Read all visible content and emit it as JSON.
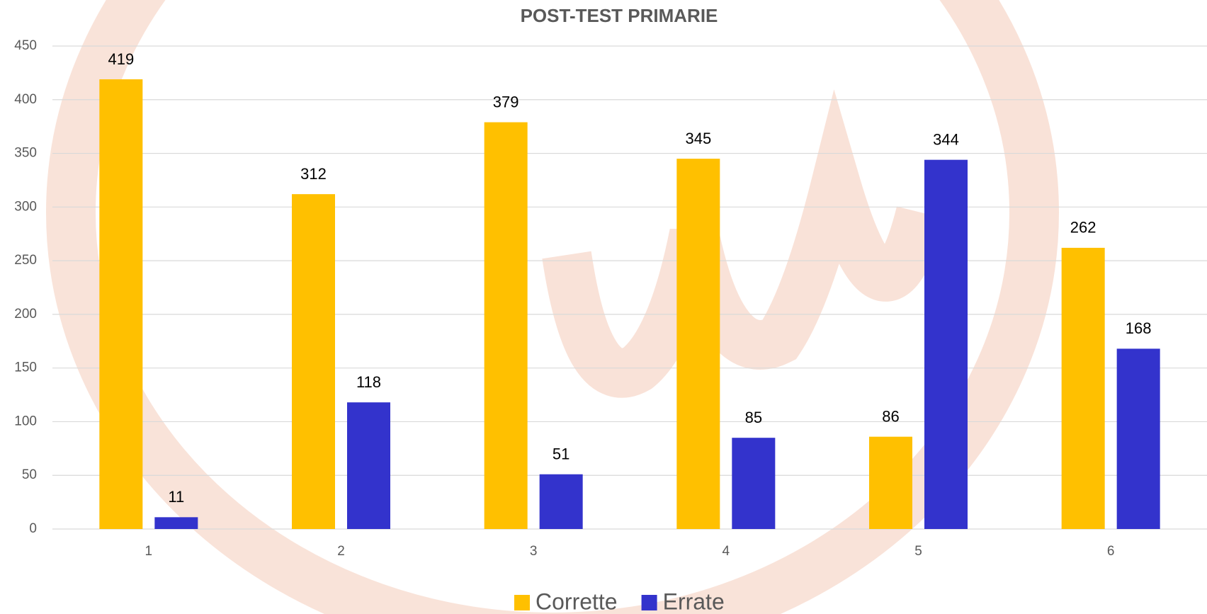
{
  "chart_data": {
    "type": "bar",
    "title": "POST-TEST PRIMARIE",
    "categories": [
      "1",
      "2",
      "3",
      "4",
      "5",
      "6"
    ],
    "series": [
      {
        "name": "Corrette",
        "color": "#FFC000",
        "values": [
          419,
          312,
          379,
          345,
          86,
          262
        ]
      },
      {
        "name": "Errate",
        "color": "#3333CC",
        "values": [
          11,
          118,
          51,
          85,
          344,
          168
        ]
      }
    ],
    "ylim": [
      0,
      450
    ],
    "yticks": [
      0,
      50,
      100,
      150,
      200,
      250,
      300,
      350,
      400,
      450
    ],
    "grid": true,
    "legend": "bottom"
  }
}
